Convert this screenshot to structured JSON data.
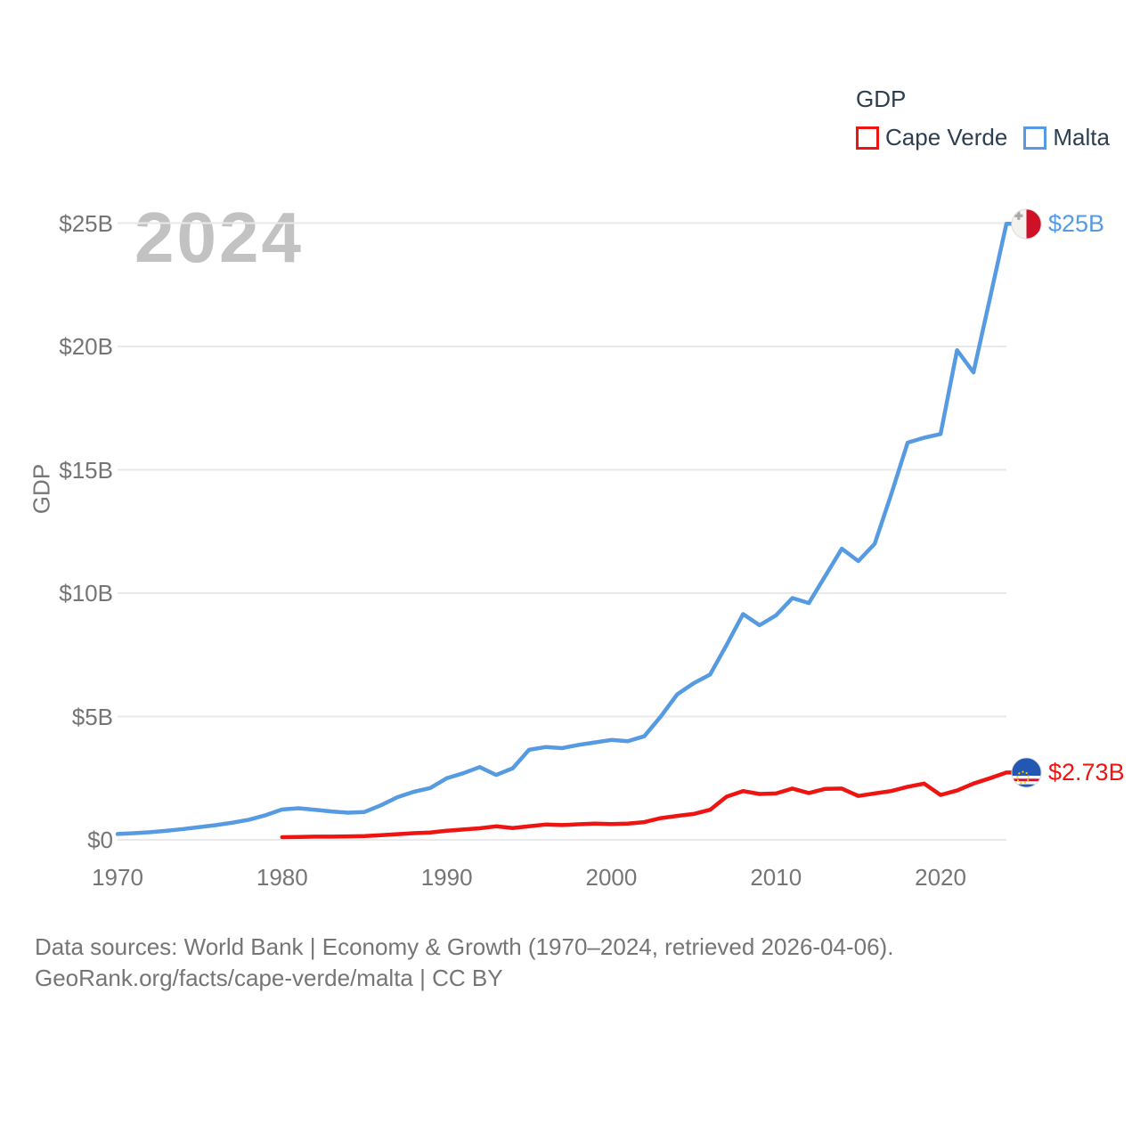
{
  "legend": {
    "title": "GDP",
    "items": [
      {
        "label": "Cape Verde",
        "color": "#ee1411"
      },
      {
        "label": "Malta",
        "color": "#569be1"
      }
    ]
  },
  "watermark": "2024",
  "end_labels": {
    "malta": {
      "series": "Malta",
      "text": "$25B",
      "color": "#569be1",
      "flag": "malta-flag-icon"
    },
    "cape_verde": {
      "series": "Cape Verde",
      "text": "$2.73B",
      "color": "#ee1411",
      "flag": "cape-verde-flag-icon"
    }
  },
  "footer": {
    "line1": "Data sources: World Bank | Economy & Growth (1970–2024, retrieved 2026-04-06).",
    "line2": "GeoRank.org/facts/cape-verde/malta | CC BY"
  },
  "chart_data": {
    "type": "line",
    "title": "GDP",
    "ylabel": "GDP",
    "xlabel": "",
    "watermark_year": "2024",
    "xlim": [
      1970,
      2024
    ],
    "ylim": [
      0,
      25
    ],
    "grid": "horizontal",
    "legend_position": "top-right",
    "x_ticks": [
      1970,
      1980,
      1990,
      2000,
      2010,
      2020
    ],
    "y_ticks": [
      {
        "value": 0,
        "label": "$0"
      },
      {
        "value": 5,
        "label": "$5B"
      },
      {
        "value": 10,
        "label": "$10B"
      },
      {
        "value": 15,
        "label": "$15B"
      },
      {
        "value": 20,
        "label": "$20B"
      },
      {
        "value": 25,
        "label": "$25B"
      }
    ],
    "unit": "billions of current US$",
    "series": [
      {
        "name": "Malta",
        "color": "#569be1",
        "start_year": 1970,
        "end_year": 2024,
        "end_value_label": "$25B",
        "values": [
          0.24,
          0.27,
          0.31,
          0.37,
          0.44,
          0.52,
          0.6,
          0.7,
          0.82,
          1.0,
          1.23,
          1.28,
          1.22,
          1.15,
          1.1,
          1.13,
          1.4,
          1.73,
          1.95,
          2.1,
          2.5,
          2.7,
          2.95,
          2.63,
          2.9,
          3.65,
          3.76,
          3.72,
          3.85,
          3.95,
          4.05,
          4.0,
          4.2,
          5.0,
          5.9,
          6.35,
          6.7,
          7.9,
          9.15,
          8.7,
          9.1,
          9.8,
          9.6,
          10.7,
          11.8,
          11.3,
          12.0,
          14.0,
          16.1,
          16.3,
          16.45,
          19.85,
          18.95,
          21.95,
          24.97
        ]
      },
      {
        "name": "Cape Verde",
        "color": "#ee1411",
        "start_year": 1980,
        "end_year": 2024,
        "end_value_label": "$2.73B",
        "values": [
          0.11,
          0.12,
          0.13,
          0.13,
          0.14,
          0.15,
          0.19,
          0.23,
          0.27,
          0.3,
          0.37,
          0.42,
          0.47,
          0.55,
          0.48,
          0.55,
          0.62,
          0.6,
          0.63,
          0.66,
          0.64,
          0.66,
          0.72,
          0.88,
          0.97,
          1.05,
          1.22,
          1.75,
          1.98,
          1.86,
          1.88,
          2.08,
          1.9,
          2.07,
          2.08,
          1.78,
          1.88,
          1.98,
          2.15,
          2.28,
          1.82,
          2.0,
          2.28,
          2.5,
          2.73
        ]
      }
    ]
  },
  "colors": {
    "grid": "#e9e9e9",
    "tick_text": "#757575",
    "legend_text": "#2d3e50",
    "watermark": "#c2c2c2",
    "footer_text": "#757575"
  }
}
